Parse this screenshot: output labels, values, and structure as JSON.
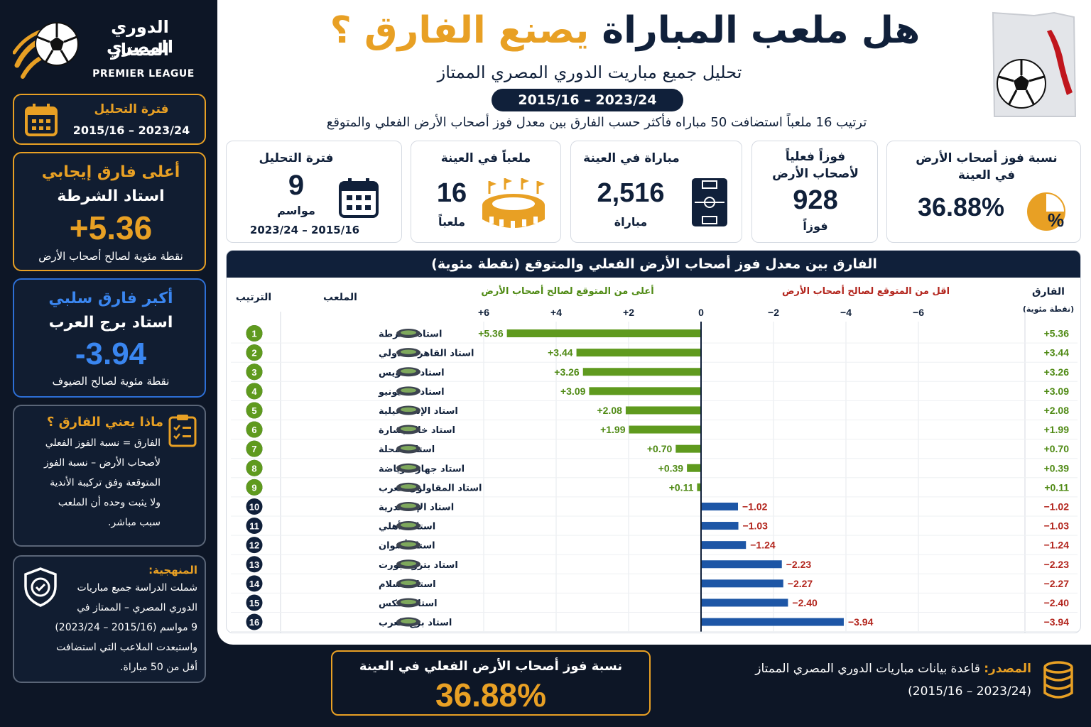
{
  "league": {
    "title_line1": "الدوري المصري",
    "title_line2": "الممتاز",
    "subtitle": "PREMIER LEAGUE"
  },
  "side": {
    "period_label": "فترة التحليل",
    "period_value": "2015/16 – 2023/24",
    "best_title": "أعلى فارق إيجابي",
    "best_stadium": "استاد الشرطة",
    "best_value": "+5.36",
    "best_note": "نقطة مئوية لصالح أصحاب الأرض",
    "worst_title": "أكبر فارق سلبي",
    "worst_stadium": "استاد برج العرب",
    "worst_value": "-3.94",
    "worst_note": "نقطة مئوية لصالح الضيوف",
    "meaning_title": "ماذا يعني الفارق ؟",
    "meaning_lines": [
      "الفارق = نسبة الفوز الفعلي",
      "لأصحاب الأرض – نسبة الفوز",
      "المتوقعة وفق تركيبة الأندية",
      "ولا يثبت وحده أن الملعب",
      "سبب مباشر."
    ],
    "method_title": "المنهجية:",
    "method_lines": [
      "شملت الدراسة جميع مباريات",
      "الدوري المصري – الممتاز في",
      "9 مواسم (2015/16 – 2023/24)",
      "واستبعدت الملاعب التي استضافت",
      "أقل من 50 مباراة."
    ]
  },
  "header": {
    "title_part1": "هل ملعب المباراة",
    "title_part2": "يصنع الفارق ؟",
    "subtitle": "تحليل جميع مباريت الدوري المصري الممتاز",
    "period_pill": "2015/16 – 2023/24",
    "description": "ترتيب 16 ملعباً استضافت 50 مباراه فأكثر حسب الفارق بين معدل فوز أصحاب الأرض الفعلي والمتوقع"
  },
  "stats": {
    "winrate_label": "نسبة فوز أصحاب الأرض في العينة",
    "winrate_value": "36.88%",
    "wins_label_1": "فوزاً فعلياً",
    "wins_label_2": "لأصحاب الأرض",
    "wins_value": "928",
    "wins_unit": "فوزاً",
    "matches_label": "مباراة في العينة",
    "matches_value": "2,516",
    "matches_unit": "مباراة",
    "stadiums_label": "ملعباً في العينة",
    "stadiums_value": "16",
    "stadiums_unit": "ملعباً",
    "seasons_label": "فترة التحليل",
    "seasons_value": "9",
    "seasons_unit": "مواسم",
    "seasons_period": "2015/16 – 2023/24"
  },
  "chart_header": {
    "title": "الفارق بين معدل فوز أصحاب الأرض الفعلي والمتوقع (نقطة مئوية)",
    "rank_label": "الترتيب",
    "stadium_label": "الملعب",
    "positive_label": "أعلى من المتوقع لصالح أصحاب الأرض",
    "negative_label": "اقل من المتوقع لصالح أصحاب الأرض",
    "diff_label": "الفارق",
    "diff_unit": "(نقطة مئوية)"
  },
  "chart_data": {
    "type": "bar",
    "orientation": "horizontal",
    "title": "الفارق بين معدل فوز أصحاب الأرض الفعلي والمتوقع (نقطة مئوية)",
    "xlim": [
      -7,
      7
    ],
    "ticks": [
      6,
      4,
      2,
      0,
      -2,
      -4,
      -6
    ],
    "tick_labels": [
      "+6",
      "+4",
      "+2",
      "0",
      "−2",
      "−4",
      "−6"
    ],
    "positive_color": "#5f9a1e",
    "negative_color": "#1d56a6",
    "categories": [
      "استاد الشرطة",
      "استاد القاهرة الدولي",
      "استاد السويس",
      "استاد 30 يونيو",
      "استاد الإسماعيلية",
      "استاد خالد بشارة",
      "استاد المحلة",
      "استاد جهاز الرياضة",
      "استاد المقاولون العرب",
      "استاد الإسكندرية",
      "استاد الأهلي",
      "استاد أسوان",
      "استاد بتروسيورت",
      "استاد السلام",
      "استاد المكس",
      "استاد برج العرب"
    ],
    "values": [
      5.36,
      3.44,
      3.26,
      3.09,
      2.08,
      1.99,
      0.7,
      0.39,
      0.11,
      -1.02,
      -1.03,
      -1.24,
      -2.23,
      -2.27,
      -2.4,
      -3.94
    ],
    "labels": [
      "+5.36",
      "+3.44",
      "+3.26",
      "+3.09",
      "+2.08",
      "+1.99",
      "+0.70",
      "+0.39",
      "+0.11",
      "−1.02",
      "−1.03",
      "−1.24",
      "−2.23",
      "−2.27",
      "−2.40",
      "−3.94"
    ]
  },
  "footer": {
    "highlight_label": "نسبة فوز أصحاب الأرض الفعلي في العينة",
    "highlight_value": "36.88%",
    "source_label": "المصدر:",
    "source_text": "قاعدة بيانات مباريات الدوري المصري الممتاز",
    "source_period": "(2015/16 – 2023/24)"
  },
  "colors": {
    "gold": "#e8a024",
    "navy": "#10203a",
    "green": "#5f9a1e",
    "blue": "#1d56a6",
    "red": "#b3261e"
  }
}
